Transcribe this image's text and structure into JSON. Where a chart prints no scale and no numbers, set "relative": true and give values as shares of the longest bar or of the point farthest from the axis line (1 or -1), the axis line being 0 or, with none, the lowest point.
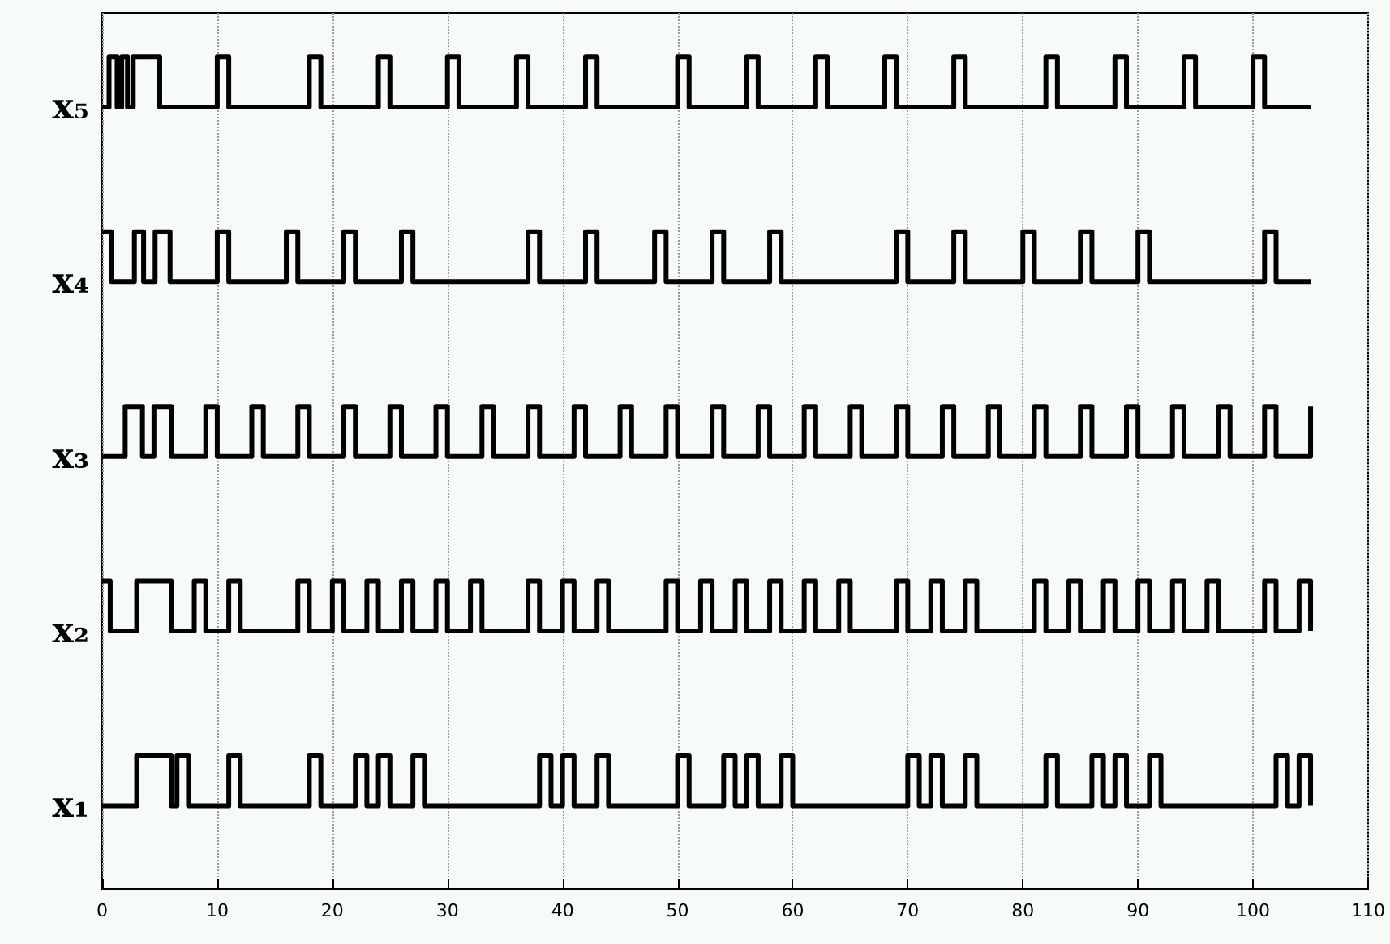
{
  "chart_data": {
    "type": "step",
    "relative": true,
    "series": [
      {
        "name": "x₁",
        "color": "#000000",
        "x": [
          0,
          3,
          6,
          6.5,
          7.5,
          11,
          12,
          18,
          19,
          22,
          23,
          24,
          25,
          27,
          28,
          38,
          39,
          40,
          41,
          43,
          44,
          50,
          51,
          54,
          55,
          56,
          57,
          59,
          60,
          70,
          71,
          72,
          73,
          75,
          76,
          82,
          83,
          86,
          87,
          88,
          89,
          91,
          92,
          102,
          103,
          104,
          105
        ],
        "values": [
          0.1,
          0.16,
          0.1,
          0.16,
          0.1,
          0.16,
          0.1,
          0.16,
          0.1,
          0.16,
          0.1,
          0.16,
          0.1,
          0.16,
          0.1,
          0.16,
          0.1,
          0.16,
          0.1,
          0.16,
          0.1,
          0.16,
          0.1,
          0.16,
          0.1,
          0.16,
          0.1,
          0.16,
          0.1,
          0.16,
          0.1,
          0.16,
          0.1,
          0.16,
          0.1,
          0.16,
          0.1,
          0.16,
          0.1,
          0.16,
          0.1,
          0.16,
          0.1,
          0.16,
          0.1,
          0.16,
          0.1
        ]
      },
      {
        "name": "x₂",
        "color": "#000000",
        "x": [
          0,
          0.7,
          3,
          6,
          8,
          9,
          11,
          12,
          17,
          18,
          20,
          21,
          23,
          24,
          26,
          27,
          29,
          30,
          32,
          33,
          37,
          38,
          40,
          41,
          43,
          44,
          49,
          50,
          52,
          53,
          55,
          56,
          58,
          59,
          61,
          62,
          64,
          65,
          69,
          70,
          72,
          73,
          75,
          76,
          81,
          82,
          84,
          85,
          87,
          88,
          90,
          91,
          93,
          94,
          96,
          97,
          101,
          102,
          104,
          105
        ],
        "values": [
          0.37,
          0.31,
          0.37,
          0.31,
          0.37,
          0.31,
          0.37,
          0.31,
          0.37,
          0.31,
          0.37,
          0.31,
          0.37,
          0.31,
          0.37,
          0.31,
          0.37,
          0.31,
          0.37,
          0.31,
          0.37,
          0.31,
          0.37,
          0.31,
          0.37,
          0.31,
          0.37,
          0.31,
          0.37,
          0.31,
          0.37,
          0.31,
          0.37,
          0.31,
          0.37,
          0.31,
          0.37,
          0.31,
          0.37,
          0.31,
          0.37,
          0.31,
          0.37,
          0.31,
          0.37,
          0.31,
          0.37,
          0.31,
          0.37,
          0.31,
          0.37,
          0.31,
          0.37,
          0.31,
          0.37,
          0.31,
          0.37,
          0.31,
          0.37,
          0.31
        ]
      },
      {
        "name": "x₃",
        "color": "#000000",
        "x": [
          0,
          2,
          3.5,
          4.5,
          6,
          9,
          10,
          13,
          14,
          17,
          18,
          21,
          22,
          25,
          26,
          29,
          30,
          33,
          34,
          37,
          38,
          41,
          42,
          45,
          46,
          49,
          50,
          53,
          54,
          57,
          58,
          61,
          62,
          65,
          66,
          69,
          70,
          73,
          74,
          77,
          78,
          81,
          82,
          85,
          86,
          89,
          90,
          93,
          94,
          97,
          98,
          101,
          102,
          105
        ],
        "values": [
          0.52,
          0.58,
          0.52,
          0.58,
          0.52,
          0.58,
          0.52,
          0.58,
          0.52,
          0.58,
          0.52,
          0.58,
          0.52,
          0.58,
          0.52,
          0.58,
          0.52,
          0.58,
          0.52,
          0.58,
          0.52,
          0.58,
          0.52,
          0.58,
          0.52,
          0.58,
          0.52,
          0.58,
          0.52,
          0.58,
          0.52,
          0.58,
          0.52,
          0.58,
          0.52,
          0.58,
          0.52,
          0.58,
          0.52,
          0.58,
          0.52,
          0.58,
          0.52,
          0.58,
          0.52,
          0.58,
          0.52,
          0.58,
          0.52,
          0.58,
          0.52,
          0.58,
          0.52,
          0.58
        ]
      },
      {
        "name": "x₄",
        "color": "#000000",
        "x": [
          0,
          0.8,
          2.8,
          3.6,
          4.6,
          5.9,
          10,
          11,
          16,
          17,
          21,
          22,
          26,
          27,
          37,
          38,
          42,
          43,
          48,
          49,
          53,
          54,
          58,
          59,
          69,
          70,
          74,
          75,
          80,
          81,
          85,
          86,
          90,
          91,
          101,
          102,
          105
        ],
        "values": [
          0.79,
          0.73,
          0.79,
          0.73,
          0.79,
          0.73,
          0.79,
          0.73,
          0.79,
          0.73,
          0.79,
          0.73,
          0.79,
          0.73,
          0.79,
          0.73,
          0.79,
          0.73,
          0.79,
          0.73,
          0.79,
          0.73,
          0.79,
          0.73,
          0.79,
          0.73,
          0.79,
          0.73,
          0.79,
          0.73,
          0.79,
          0.73,
          0.79,
          0.73,
          0.79,
          0.73,
          0.73
        ]
      },
      {
        "name": "x₅",
        "color": "#000000",
        "x": [
          0,
          0.6,
          1.3,
          1.7,
          2.2,
          2.7,
          5,
          10,
          11,
          18,
          19,
          24,
          25,
          30,
          31,
          36,
          37,
          42,
          43,
          50,
          51,
          56,
          57,
          62,
          63,
          68,
          69,
          74,
          75,
          82,
          83,
          88,
          89,
          94,
          95,
          100,
          101,
          105
        ],
        "values": [
          0.94,
          1,
          0.94,
          1,
          0.94,
          1,
          0.94,
          1,
          0.94,
          1,
          0.94,
          1,
          0.94,
          1,
          0.94,
          1,
          0.94,
          1,
          0.94,
          1,
          0.94,
          1,
          0.94,
          1,
          0.94,
          1,
          0.94,
          1,
          0.94,
          1,
          0.94,
          1,
          0.94,
          1,
          0.94,
          1,
          0.94,
          0.94
        ]
      }
    ],
    "xlim": [
      0,
      110
    ],
    "xticks": [
      0,
      10,
      20,
      30,
      40,
      50,
      60,
      70,
      80,
      90,
      100,
      110
    ],
    "grid": "x",
    "marker": "none",
    "line_style": "solid"
  }
}
